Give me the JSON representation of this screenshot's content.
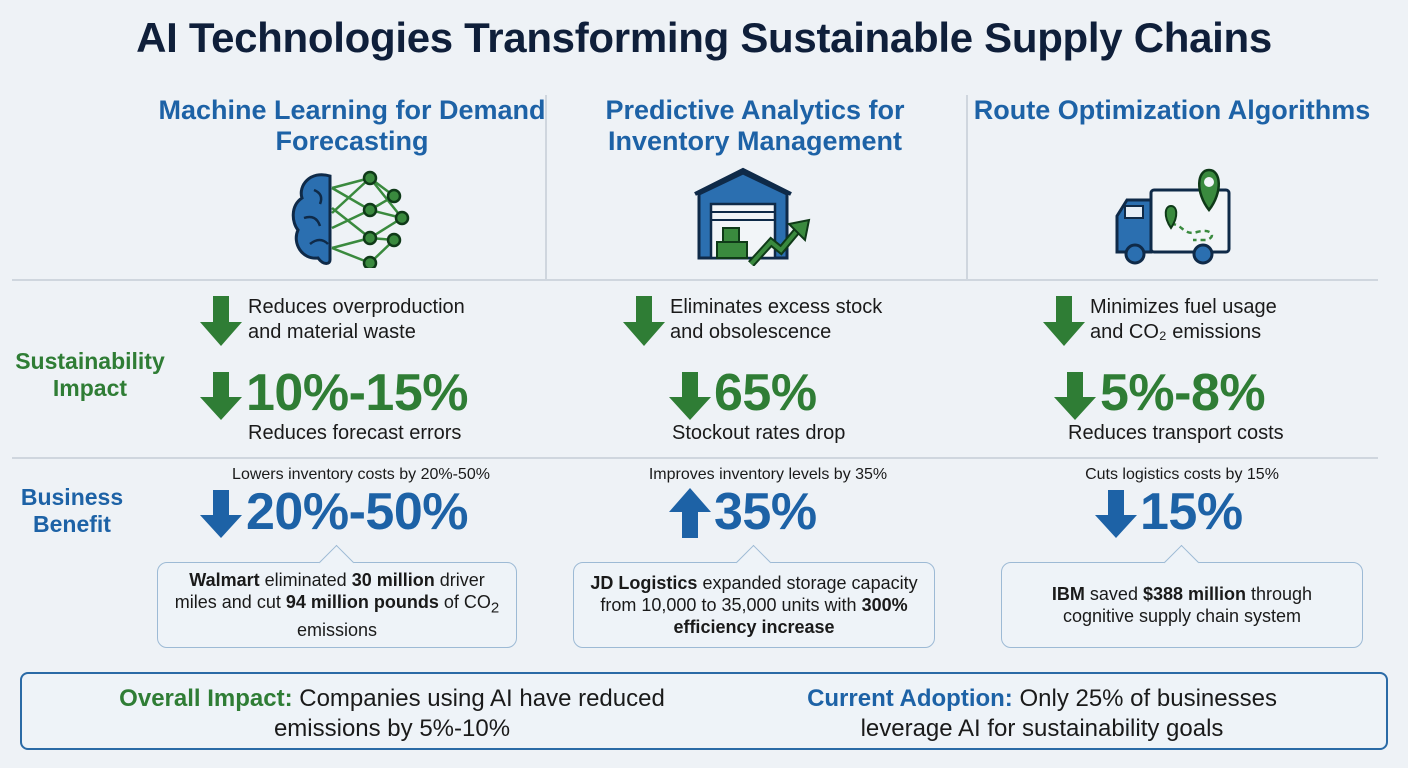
{
  "title": "AI Technologies Transforming Sustainable Supply Chains",
  "row_labels": {
    "sustainability": "Sustainability Impact",
    "business": "Business Benefit"
  },
  "colors": {
    "green": "#2f7d35",
    "blue": "#1d62a6",
    "title": "#0f1f3a"
  },
  "columns": [
    {
      "heading": "Machine Learning for Demand Forecasting",
      "icon": "brain-neural-network-icon",
      "impact_desc": [
        "Reduces overproduction",
        "and material waste"
      ],
      "impact_value": "10%-15%",
      "impact_caption": "Reduces forecast errors",
      "benefit_text": "Lowers inventory costs by 20%-50%",
      "benefit_direction": "down",
      "benefit_value": "20%-50%",
      "callout": [
        {
          "b": "Walmart"
        },
        {
          "t": " eliminated "
        },
        {
          "b": "30 million"
        },
        {
          "t": " driver miles and cut "
        },
        {
          "b": "94 million pounds"
        },
        {
          "t": " of CO"
        },
        {
          "sub": "2"
        },
        {
          "t": " emissions"
        }
      ]
    },
    {
      "heading": "Predictive Analytics for Inventory Management",
      "icon": "warehouse-growth-icon",
      "impact_desc": [
        "Eliminates excess stock",
        "and obsolescence"
      ],
      "impact_value": "65%",
      "impact_caption": "Stockout rates drop",
      "benefit_text": "Improves inventory levels by 35%",
      "benefit_direction": "up",
      "benefit_value": "35%",
      "callout": [
        {
          "b": "JD Logistics"
        },
        {
          "t": " expanded storage capacity from 10,000 to 35,000 units with "
        },
        {
          "b": "300% efficiency increase"
        }
      ]
    },
    {
      "heading": "Route Optimization Algorithms",
      "icon": "delivery-truck-route-icon",
      "impact_desc": [
        "Minimizes fuel usage",
        "and CO₂ emissions"
      ],
      "impact_value": "5%-8%",
      "impact_caption": "Reduces transport costs",
      "benefit_text": "Cuts logistics costs by 15%",
      "benefit_direction": "down",
      "benefit_value": "15%",
      "callout": [
        {
          "b": "IBM"
        },
        {
          "t": " saved "
        },
        {
          "b": "$388 million"
        },
        {
          "t": " through cognitive supply chain system"
        }
      ]
    }
  ],
  "footer": {
    "overall_label": "Overall Impact:",
    "overall_text": " Companies using AI have reduced emissions by 5%-10%",
    "adoption_label": "Current Adoption:",
    "adoption_text": " Only 25% of businesses leverage AI for sustainability goals"
  }
}
